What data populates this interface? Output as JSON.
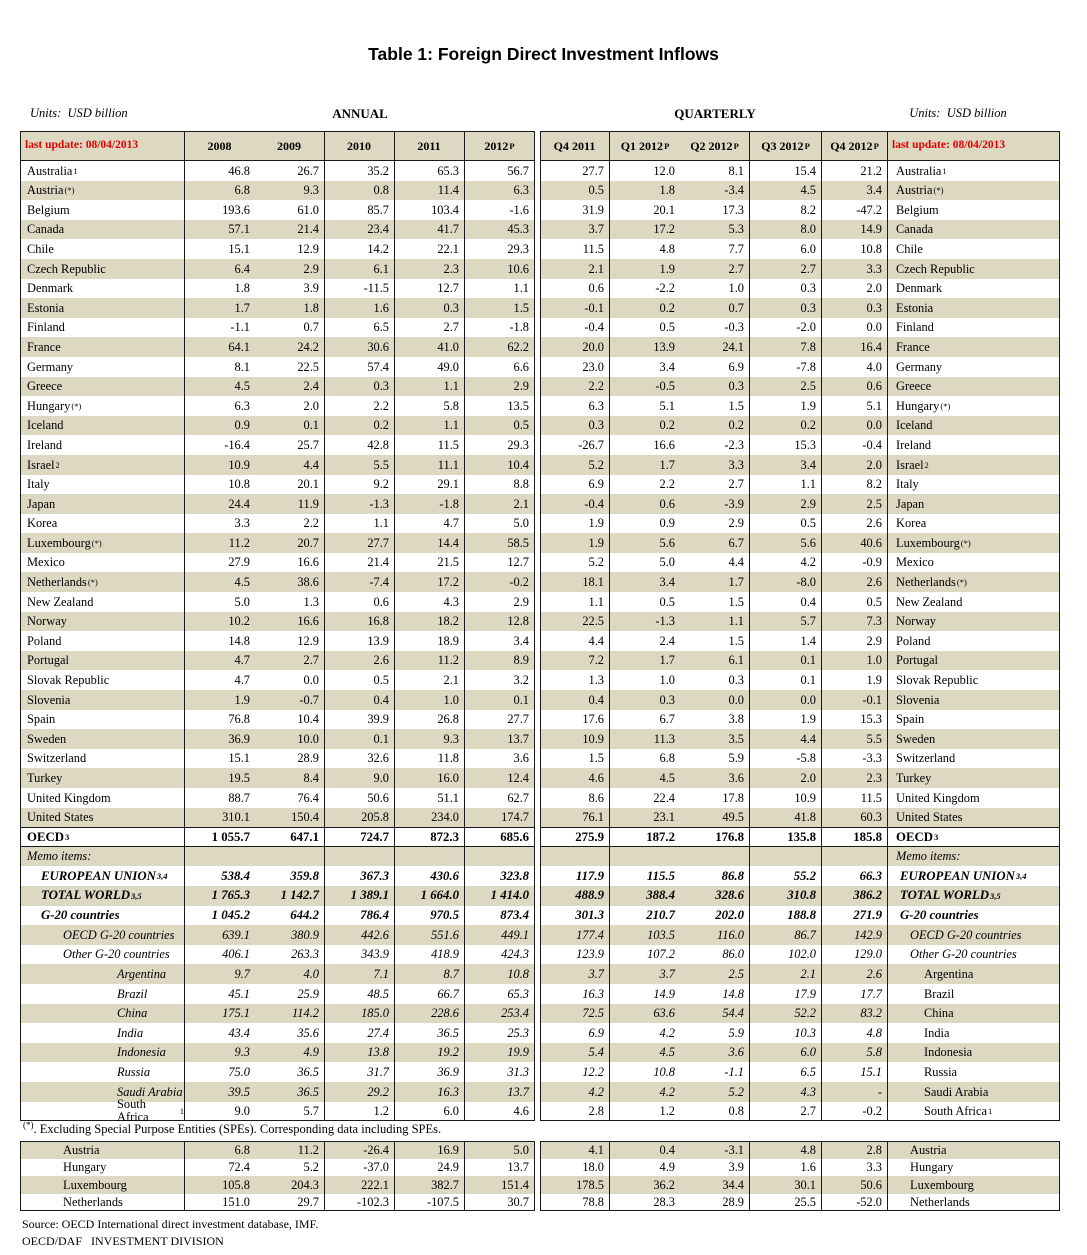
{
  "title": "Table 1: Foreign Direct Investment Inflows",
  "units_left": "Units:  USD billion",
  "units_right": "Units:  USD billion",
  "section_annual": "ANNUAL",
  "section_quarterly": "QUARTERLY",
  "last_update_left": "last update: 08/04/2013",
  "last_update_right": "last update: 08/04/2013",
  "columns": {
    "annual": [
      "2008",
      "2009",
      "2010",
      "2011",
      "2012"
    ],
    "annual_sup": [
      "",
      "",
      "",
      "",
      "P"
    ],
    "quarterly": [
      "Q4 2011",
      "Q1 2012",
      "Q2 2012",
      "Q3 2012",
      "Q4 2012"
    ],
    "quarterly_sup": [
      "",
      "P",
      "P",
      "P",
      "P"
    ]
  },
  "colors": {
    "row_shade": "#ddd8c2",
    "update_red": "#e50000",
    "border": "#1a1a1a"
  },
  "rows": [
    {
      "label": "Australia",
      "sup": "1",
      "level": 0,
      "style": "normal",
      "annual": [
        "46.8",
        "26.7",
        "35.2",
        "65.3",
        "56.7"
      ],
      "quarterly": [
        "27.7",
        "12.0",
        "8.1",
        "15.4",
        "21.2"
      ]
    },
    {
      "label": "Austria",
      "sup": "(*)",
      "level": 0,
      "style": "normal",
      "annual": [
        "6.8",
        "9.3",
        "0.8",
        "11.4",
        "6.3"
      ],
      "quarterly": [
        "0.5",
        "1.8",
        "-3.4",
        "4.5",
        "3.4"
      ]
    },
    {
      "label": "Belgium",
      "sup": "",
      "level": 0,
      "style": "normal",
      "annual": [
        "193.6",
        "61.0",
        "85.7",
        "103.4",
        "-1.6"
      ],
      "quarterly": [
        "31.9",
        "20.1",
        "17.3",
        "8.2",
        "-47.2"
      ]
    },
    {
      "label": "Canada",
      "sup": "",
      "level": 0,
      "style": "normal",
      "annual": [
        "57.1",
        "21.4",
        "23.4",
        "41.7",
        "45.3"
      ],
      "quarterly": [
        "3.7",
        "17.2",
        "5.3",
        "8.0",
        "14.9"
      ]
    },
    {
      "label": "Chile",
      "sup": "",
      "level": 0,
      "style": "normal",
      "annual": [
        "15.1",
        "12.9",
        "14.2",
        "22.1",
        "29.3"
      ],
      "quarterly": [
        "11.5",
        "4.8",
        "7.7",
        "6.0",
        "10.8"
      ]
    },
    {
      "label": "Czech Republic",
      "sup": "",
      "level": 0,
      "style": "normal",
      "annual": [
        "6.4",
        "2.9",
        "6.1",
        "2.3",
        "10.6"
      ],
      "quarterly": [
        "2.1",
        "1.9",
        "2.7",
        "2.7",
        "3.3"
      ]
    },
    {
      "label": "Denmark",
      "sup": "",
      "level": 0,
      "style": "normal",
      "annual": [
        "1.8",
        "3.9",
        "-11.5",
        "12.7",
        "1.1"
      ],
      "quarterly": [
        "0.6",
        "-2.2",
        "1.0",
        "0.3",
        "2.0"
      ]
    },
    {
      "label": "Estonia",
      "sup": "",
      "level": 0,
      "style": "normal",
      "annual": [
        "1.7",
        "1.8",
        "1.6",
        "0.3",
        "1.5"
      ],
      "quarterly": [
        "-0.1",
        "0.2",
        "0.7",
        "0.3",
        "0.3"
      ]
    },
    {
      "label": "Finland",
      "sup": "",
      "level": 0,
      "style": "normal",
      "annual": [
        "-1.1",
        "0.7",
        "6.5",
        "2.7",
        "-1.8"
      ],
      "quarterly": [
        "-0.4",
        "0.5",
        "-0.3",
        "-2.0",
        "0.0"
      ]
    },
    {
      "label": "France",
      "sup": "",
      "level": 0,
      "style": "normal",
      "annual": [
        "64.1",
        "24.2",
        "30.6",
        "41.0",
        "62.2"
      ],
      "quarterly": [
        "20.0",
        "13.9",
        "24.1",
        "7.8",
        "16.4"
      ]
    },
    {
      "label": "Germany",
      "sup": "",
      "level": 0,
      "style": "normal",
      "annual": [
        "8.1",
        "22.5",
        "57.4",
        "49.0",
        "6.6"
      ],
      "quarterly": [
        "23.0",
        "3.4",
        "6.9",
        "-7.8",
        "4.0"
      ]
    },
    {
      "label": "Greece",
      "sup": "",
      "level": 0,
      "style": "normal",
      "annual": [
        "4.5",
        "2.4",
        "0.3",
        "1.1",
        "2.9"
      ],
      "quarterly": [
        "2.2",
        "-0.5",
        "0.3",
        "2.5",
        "0.6"
      ]
    },
    {
      "label": "Hungary",
      "sup": "(*)",
      "level": 0,
      "style": "normal",
      "annual": [
        "6.3",
        "2.0",
        "2.2",
        "5.8",
        "13.5"
      ],
      "quarterly": [
        "6.3",
        "5.1",
        "1.5",
        "1.9",
        "5.1"
      ]
    },
    {
      "label": "Iceland",
      "sup": "",
      "level": 0,
      "style": "normal",
      "annual": [
        "0.9",
        "0.1",
        "0.2",
        "1.1",
        "0.5"
      ],
      "quarterly": [
        "0.3",
        "0.2",
        "0.2",
        "0.2",
        "0.0"
      ]
    },
    {
      "label": "Ireland",
      "sup": "",
      "level": 0,
      "style": "normal",
      "annual": [
        "-16.4",
        "25.7",
        "42.8",
        "11.5",
        "29.3"
      ],
      "quarterly": [
        "-26.7",
        "16.6",
        "-2.3",
        "15.3",
        "-0.4"
      ]
    },
    {
      "label": "Israel",
      "sup": "2",
      "level": 0,
      "style": "normal",
      "annual": [
        "10.9",
        "4.4",
        "5.5",
        "11.1",
        "10.4"
      ],
      "quarterly": [
        "5.2",
        "1.7",
        "3.3",
        "3.4",
        "2.0"
      ]
    },
    {
      "label": "Italy",
      "sup": "",
      "level": 0,
      "style": "normal",
      "annual": [
        "10.8",
        "20.1",
        "9.2",
        "29.1",
        "8.8"
      ],
      "quarterly": [
        "6.9",
        "2.2",
        "2.7",
        "1.1",
        "8.2"
      ]
    },
    {
      "label": "Japan",
      "sup": "",
      "level": 0,
      "style": "normal",
      "annual": [
        "24.4",
        "11.9",
        "-1.3",
        "-1.8",
        "2.1"
      ],
      "quarterly": [
        "-0.4",
        "0.6",
        "-3.9",
        "2.9",
        "2.5"
      ]
    },
    {
      "label": "Korea",
      "sup": "",
      "level": 0,
      "style": "normal",
      "annual": [
        "3.3",
        "2.2",
        "1.1",
        "4.7",
        "5.0"
      ],
      "quarterly": [
        "1.9",
        "0.9",
        "2.9",
        "0.5",
        "2.6"
      ]
    },
    {
      "label": "Luxembourg",
      "sup": "(*)",
      "level": 0,
      "style": "normal",
      "annual": [
        "11.2",
        "20.7",
        "27.7",
        "14.4",
        "58.5"
      ],
      "quarterly": [
        "1.9",
        "5.6",
        "6.7",
        "5.6",
        "40.6"
      ]
    },
    {
      "label": "Mexico",
      "sup": "",
      "level": 0,
      "style": "normal",
      "annual": [
        "27.9",
        "16.6",
        "21.4",
        "21.5",
        "12.7"
      ],
      "quarterly": [
        "5.2",
        "5.0",
        "4.4",
        "4.2",
        "-0.9"
      ]
    },
    {
      "label": "Netherlands",
      "sup": "(*)",
      "level": 0,
      "style": "normal",
      "annual": [
        "4.5",
        "38.6",
        "-7.4",
        "17.2",
        "-0.2"
      ],
      "quarterly": [
        "18.1",
        "3.4",
        "1.7",
        "-8.0",
        "2.6"
      ]
    },
    {
      "label": "New Zealand",
      "sup": "",
      "level": 0,
      "style": "normal",
      "annual": [
        "5.0",
        "1.3",
        "0.6",
        "4.3",
        "2.9"
      ],
      "quarterly": [
        "1.1",
        "0.5",
        "1.5",
        "0.4",
        "0.5"
      ]
    },
    {
      "label": "Norway",
      "sup": "",
      "level": 0,
      "style": "normal",
      "annual": [
        "10.2",
        "16.6",
        "16.8",
        "18.2",
        "12.8"
      ],
      "quarterly": [
        "22.5",
        "-1.3",
        "1.1",
        "5.7",
        "7.3"
      ]
    },
    {
      "label": "Poland",
      "sup": "",
      "level": 0,
      "style": "normal",
      "annual": [
        "14.8",
        "12.9",
        "13.9",
        "18.9",
        "3.4"
      ],
      "quarterly": [
        "4.4",
        "2.4",
        "1.5",
        "1.4",
        "2.9"
      ]
    },
    {
      "label": "Portugal",
      "sup": "",
      "level": 0,
      "style": "normal",
      "annual": [
        "4.7",
        "2.7",
        "2.6",
        "11.2",
        "8.9"
      ],
      "quarterly": [
        "7.2",
        "1.7",
        "6.1",
        "0.1",
        "1.0"
      ]
    },
    {
      "label": "Slovak Republic",
      "sup": "",
      "level": 0,
      "style": "normal",
      "annual": [
        "4.7",
        "0.0",
        "0.5",
        "2.1",
        "3.2"
      ],
      "quarterly": [
        "1.3",
        "1.0",
        "0.3",
        "0.1",
        "1.9"
      ]
    },
    {
      "label": "Slovenia",
      "sup": "",
      "level": 0,
      "style": "normal",
      "annual": [
        "1.9",
        "-0.7",
        "0.4",
        "1.0",
        "0.1"
      ],
      "quarterly": [
        "0.4",
        "0.3",
        "0.0",
        "0.0",
        "-0.1"
      ]
    },
    {
      "label": "Spain",
      "sup": "",
      "level": 0,
      "style": "normal",
      "annual": [
        "76.8",
        "10.4",
        "39.9",
        "26.8",
        "27.7"
      ],
      "quarterly": [
        "17.6",
        "6.7",
        "3.8",
        "1.9",
        "15.3"
      ]
    },
    {
      "label": "Sweden",
      "sup": "",
      "level": 0,
      "style": "normal",
      "annual": [
        "36.9",
        "10.0",
        "0.1",
        "9.3",
        "13.7"
      ],
      "quarterly": [
        "10.9",
        "11.3",
        "3.5",
        "4.4",
        "5.5"
      ]
    },
    {
      "label": "Switzerland",
      "sup": "",
      "level": 0,
      "style": "normal",
      "annual": [
        "15.1",
        "28.9",
        "32.6",
        "11.8",
        "3.6"
      ],
      "quarterly": [
        "1.5",
        "6.8",
        "5.9",
        "-5.8",
        "-3.3"
      ]
    },
    {
      "label": "Turkey",
      "sup": "",
      "level": 0,
      "style": "normal",
      "annual": [
        "19.5",
        "8.4",
        "9.0",
        "16.0",
        "12.4"
      ],
      "quarterly": [
        "4.6",
        "4.5",
        "3.6",
        "2.0",
        "2.3"
      ]
    },
    {
      "label": "United Kingdom",
      "sup": "",
      "level": 0,
      "style": "normal",
      "annual": [
        "88.7",
        "76.4",
        "50.6",
        "51.1",
        "62.7"
      ],
      "quarterly": [
        "8.6",
        "22.4",
        "17.8",
        "10.9",
        "11.5"
      ]
    },
    {
      "label": "United States",
      "sup": "",
      "level": 0,
      "style": "normal",
      "annual": [
        "310.1",
        "150.4",
        "205.8",
        "234.0",
        "174.7"
      ],
      "quarterly": [
        "76.1",
        "23.1",
        "49.5",
        "41.8",
        "60.3"
      ]
    },
    {
      "label": "OECD",
      "sup": "3",
      "level": 0,
      "style": "bold",
      "border": "topbottom",
      "annual": [
        "1 055.7",
        "647.1",
        "724.7",
        "872.3",
        "685.6"
      ],
      "quarterly": [
        "275.9",
        "187.2",
        "176.8",
        "135.8",
        "185.8"
      ]
    },
    {
      "label": "Memo items:",
      "sup": "",
      "level": 0,
      "style": "memo",
      "annual": [
        "",
        "",
        "",
        "",
        ""
      ],
      "quarterly": [
        "",
        "",
        "",
        "",
        ""
      ]
    },
    {
      "label": "EUROPEAN UNION",
      "sup": "3,4",
      "level": 1,
      "style": "bolditalic",
      "annual": [
        "538.4",
        "359.8",
        "367.3",
        "430.6",
        "323.8"
      ],
      "quarterly": [
        "117.9",
        "115.5",
        "86.8",
        "55.2",
        "66.3"
      ]
    },
    {
      "label": "TOTAL WORLD",
      "sup": "3,5",
      "level": 1,
      "style": "bolditalic",
      "annual": [
        "1 765.3",
        "1 142.7",
        "1 389.1",
        "1 664.0",
        "1 414.0"
      ],
      "quarterly": [
        "488.9",
        "388.4",
        "328.6",
        "310.8",
        "386.2"
      ]
    },
    {
      "label": "G-20 countries",
      "sup": "",
      "level": 1,
      "style": "bolditalic",
      "annual": [
        "1 045.2",
        "644.2",
        "786.4",
        "970.5",
        "873.4"
      ],
      "quarterly": [
        "301.3",
        "210.7",
        "202.0",
        "188.8",
        "271.9"
      ]
    },
    {
      "label": "OECD G-20 countries",
      "sup": "",
      "level": 2,
      "style": "italic",
      "annual": [
        "639.1",
        "380.9",
        "442.6",
        "551.6",
        "449.1"
      ],
      "quarterly": [
        "177.4",
        "103.5",
        "116.0",
        "86.7",
        "142.9"
      ]
    },
    {
      "label": "Other G-20 countries",
      "sup": "",
      "level": 2,
      "style": "italic",
      "annual": [
        "406.1",
        "263.3",
        "343.9",
        "418.9",
        "424.3"
      ],
      "quarterly": [
        "123.9",
        "107.2",
        "86.0",
        "102.0",
        "129.0"
      ]
    },
    {
      "label": "Argentina",
      "sup": "",
      "level": 3,
      "style": "italic",
      "rstyle": "normal",
      "annual": [
        "9.7",
        "4.0",
        "7.1",
        "8.7",
        "10.8"
      ],
      "quarterly": [
        "3.7",
        "3.7",
        "2.5",
        "2.1",
        "2.6"
      ]
    },
    {
      "label": "Brazil",
      "sup": "",
      "level": 3,
      "style": "italic",
      "rstyle": "normal",
      "annual": [
        "45.1",
        "25.9",
        "48.5",
        "66.7",
        "65.3"
      ],
      "quarterly": [
        "16.3",
        "14.9",
        "14.8",
        "17.9",
        "17.7"
      ]
    },
    {
      "label": "China",
      "sup": "",
      "level": 3,
      "style": "italic",
      "rstyle": "normal",
      "annual": [
        "175.1",
        "114.2",
        "185.0",
        "228.6",
        "253.4"
      ],
      "quarterly": [
        "72.5",
        "63.6",
        "54.4",
        "52.2",
        "83.2"
      ]
    },
    {
      "label": "India",
      "sup": "",
      "level": 3,
      "style": "italic",
      "rstyle": "normal",
      "annual": [
        "43.4",
        "35.6",
        "27.4",
        "36.5",
        "25.3"
      ],
      "quarterly": [
        "6.9",
        "4.2",
        "5.9",
        "10.3",
        "4.8"
      ]
    },
    {
      "label": "Indonesia",
      "sup": "",
      "level": 3,
      "style": "italic",
      "rstyle": "normal",
      "annual": [
        "9.3",
        "4.9",
        "13.8",
        "19.2",
        "19.9"
      ],
      "quarterly": [
        "5.4",
        "4.5",
        "3.6",
        "6.0",
        "5.8"
      ]
    },
    {
      "label": "Russia",
      "sup": "",
      "level": 3,
      "style": "italic",
      "rstyle": "normal",
      "annual": [
        "75.0",
        "36.5",
        "31.7",
        "36.9",
        "31.3"
      ],
      "quarterly": [
        "12.2",
        "10.8",
        "-1.1",
        "6.5",
        "15.1"
      ]
    },
    {
      "label": "Saudi Arabia",
      "sup": "",
      "level": 3,
      "style": "italic",
      "rstyle": "normal",
      "annual": [
        "39.5",
        "36.5",
        "29.2",
        "16.3",
        "13.7"
      ],
      "quarterly": [
        "4.2",
        "4.2",
        "5.2",
        "4.3",
        "-"
      ]
    },
    {
      "label": "South Africa",
      "sup": "1",
      "level": 3,
      "style": "normal",
      "border": "bottom",
      "annual": [
        "9.0",
        "5.7",
        "1.2",
        "6.0",
        "4.6"
      ],
      "quarterly": [
        "2.8",
        "1.2",
        "0.8",
        "2.7",
        "-0.2"
      ]
    }
  ],
  "footnote": {
    "marker": "(*)",
    "text": ". Excluding Special Purpose Entities (SPEs). Corresponding data including SPEs."
  },
  "spe_rows": [
    {
      "label": "Austria",
      "sup": "",
      "level": 2,
      "style": "normal",
      "rstyle": "normal",
      "border": "top",
      "annual": [
        "6.8",
        "11.2",
        "-26.4",
        "16.9",
        "5.0"
      ],
      "quarterly": [
        "4.1",
        "0.4",
        "-3.1",
        "4.8",
        "2.8"
      ]
    },
    {
      "label": "Hungary",
      "sup": "",
      "level": 2,
      "style": "normal",
      "rstyle": "normal",
      "annual": [
        "72.4",
        "5.2",
        "-37.0",
        "24.9",
        "13.7"
      ],
      "quarterly": [
        "18.0",
        "4.9",
        "3.9",
        "1.6",
        "3.3"
      ]
    },
    {
      "label": "Luxembourg",
      "sup": "",
      "level": 2,
      "style": "normal",
      "rstyle": "normal",
      "annual": [
        "105.8",
        "204.3",
        "222.1",
        "382.7",
        "151.4"
      ],
      "quarterly": [
        "178.5",
        "36.2",
        "34.4",
        "30.1",
        "50.6"
      ]
    },
    {
      "label": "Netherlands",
      "sup": "",
      "level": 2,
      "style": "normal",
      "rstyle": "normal",
      "border": "bottom",
      "annual": [
        "151.0",
        "29.7",
        "-102.3",
        "-107.5",
        "30.7"
      ],
      "quarterly": [
        "78.8",
        "28.3",
        "28.9",
        "25.5",
        "-52.0"
      ]
    }
  ],
  "source_line1": "Source: OECD International direct investment database, IMF.",
  "source_line2": "OECD/DAF   INVESTMENT DIVISION"
}
